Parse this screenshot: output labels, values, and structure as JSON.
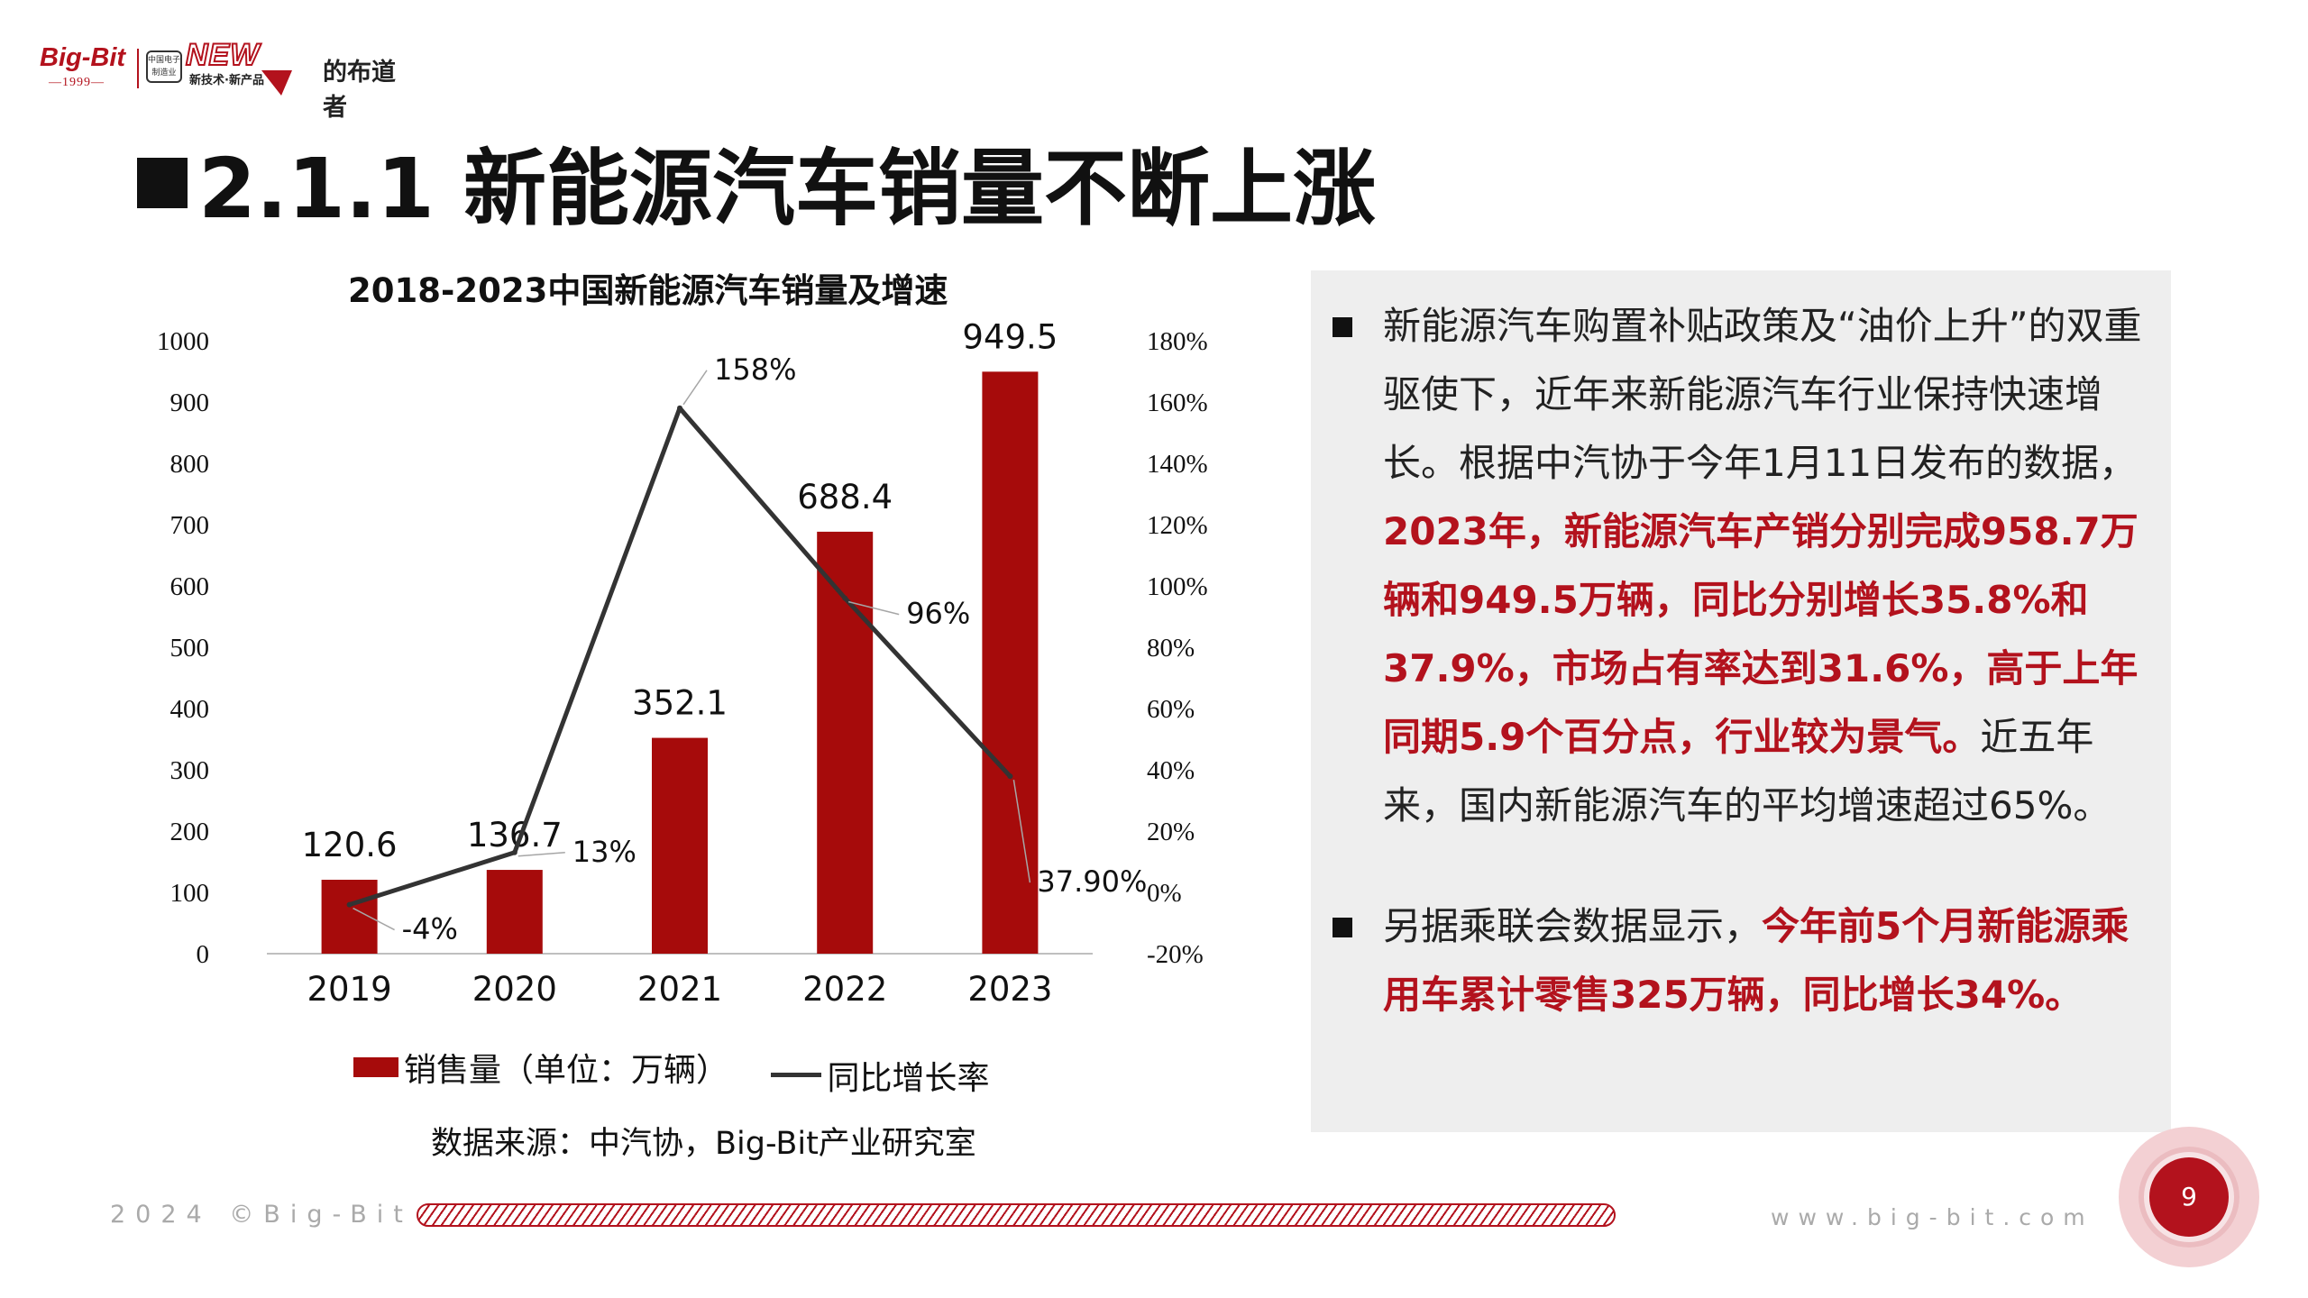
{
  "logo": {
    "brand": "Big-Bit",
    "year": "—1999—",
    "badge": "中国电子制造业",
    "new": "NEW",
    "new_sub": "新技术·新产品",
    "tail": "的布道者"
  },
  "title": "2.1.1 新能源汽车销量不断上涨",
  "chart_data": {
    "type": "bar",
    "title": "2018-2023中国新能源汽车销量及增速",
    "categories": [
      "2019",
      "2020",
      "2021",
      "2022",
      "2023"
    ],
    "series": [
      {
        "name": "销售量（单位：万辆）",
        "kind": "bar",
        "axis": "left",
        "values": [
          120.6,
          136.7,
          352.1,
          688.4,
          949.5
        ],
        "labels": [
          "120.6",
          "136.7",
          "352.1",
          "688.4",
          "949.5"
        ]
      },
      {
        "name": "同比增长率",
        "kind": "line",
        "axis": "right",
        "values": [
          -4,
          13,
          158,
          96,
          37.9
        ],
        "labels": [
          "-4%",
          "13%",
          "158%",
          "96%",
          "37.90%"
        ]
      }
    ],
    "left_axis": {
      "ylim": [
        0,
        1000
      ],
      "ticks": [
        "0",
        "100",
        "200",
        "300",
        "400",
        "500",
        "600",
        "700",
        "800",
        "900",
        "1000"
      ]
    },
    "right_axis": {
      "ylim": [
        -20,
        180
      ],
      "ticks": [
        "-20%",
        "0%",
        "20%",
        "40%",
        "60%",
        "80%",
        "100%",
        "120%",
        "140%",
        "160%",
        "180%"
      ]
    },
    "legend_position": "bottom",
    "grid": false,
    "colors": {
      "bar": "#a60b0b",
      "line": "#333333"
    }
  },
  "legend": {
    "bar_label": "销售量（单位：万辆）",
    "line_label": "同比增长率"
  },
  "source": "数据来源：中汽协，Big-Bit产业研究室",
  "panel": {
    "bullet1": {
      "text_a": "新能源汽车购置补贴政策及“油价上升”的双重驱使下，近年来新能源汽车行业保持快速增长。根据中汽协于今年1月11日发布的数据，",
      "highlight": "2023年，新能源汽车产销分别完成958.7万辆和949.5万辆，同比分别增长35.8%和37.9%，市场占有率达到31.6%，高于上年同期5.9个百分点，行业较为景气。",
      "text_b": "近五年来，国内新能源汽车的平均增速超过65%。"
    },
    "bullet2": {
      "text_a": "另据乘联会数据显示，",
      "highlight": "今年前5个月新能源乘用车累计零售325万辆，同比增长34%。"
    }
  },
  "footer": {
    "copyright": "2024 ©Big-Bit",
    "website": "www.big-bit.com",
    "page": "9"
  },
  "colors": {
    "accent": "#b3121d",
    "panel_bg": "#eeeeee"
  }
}
